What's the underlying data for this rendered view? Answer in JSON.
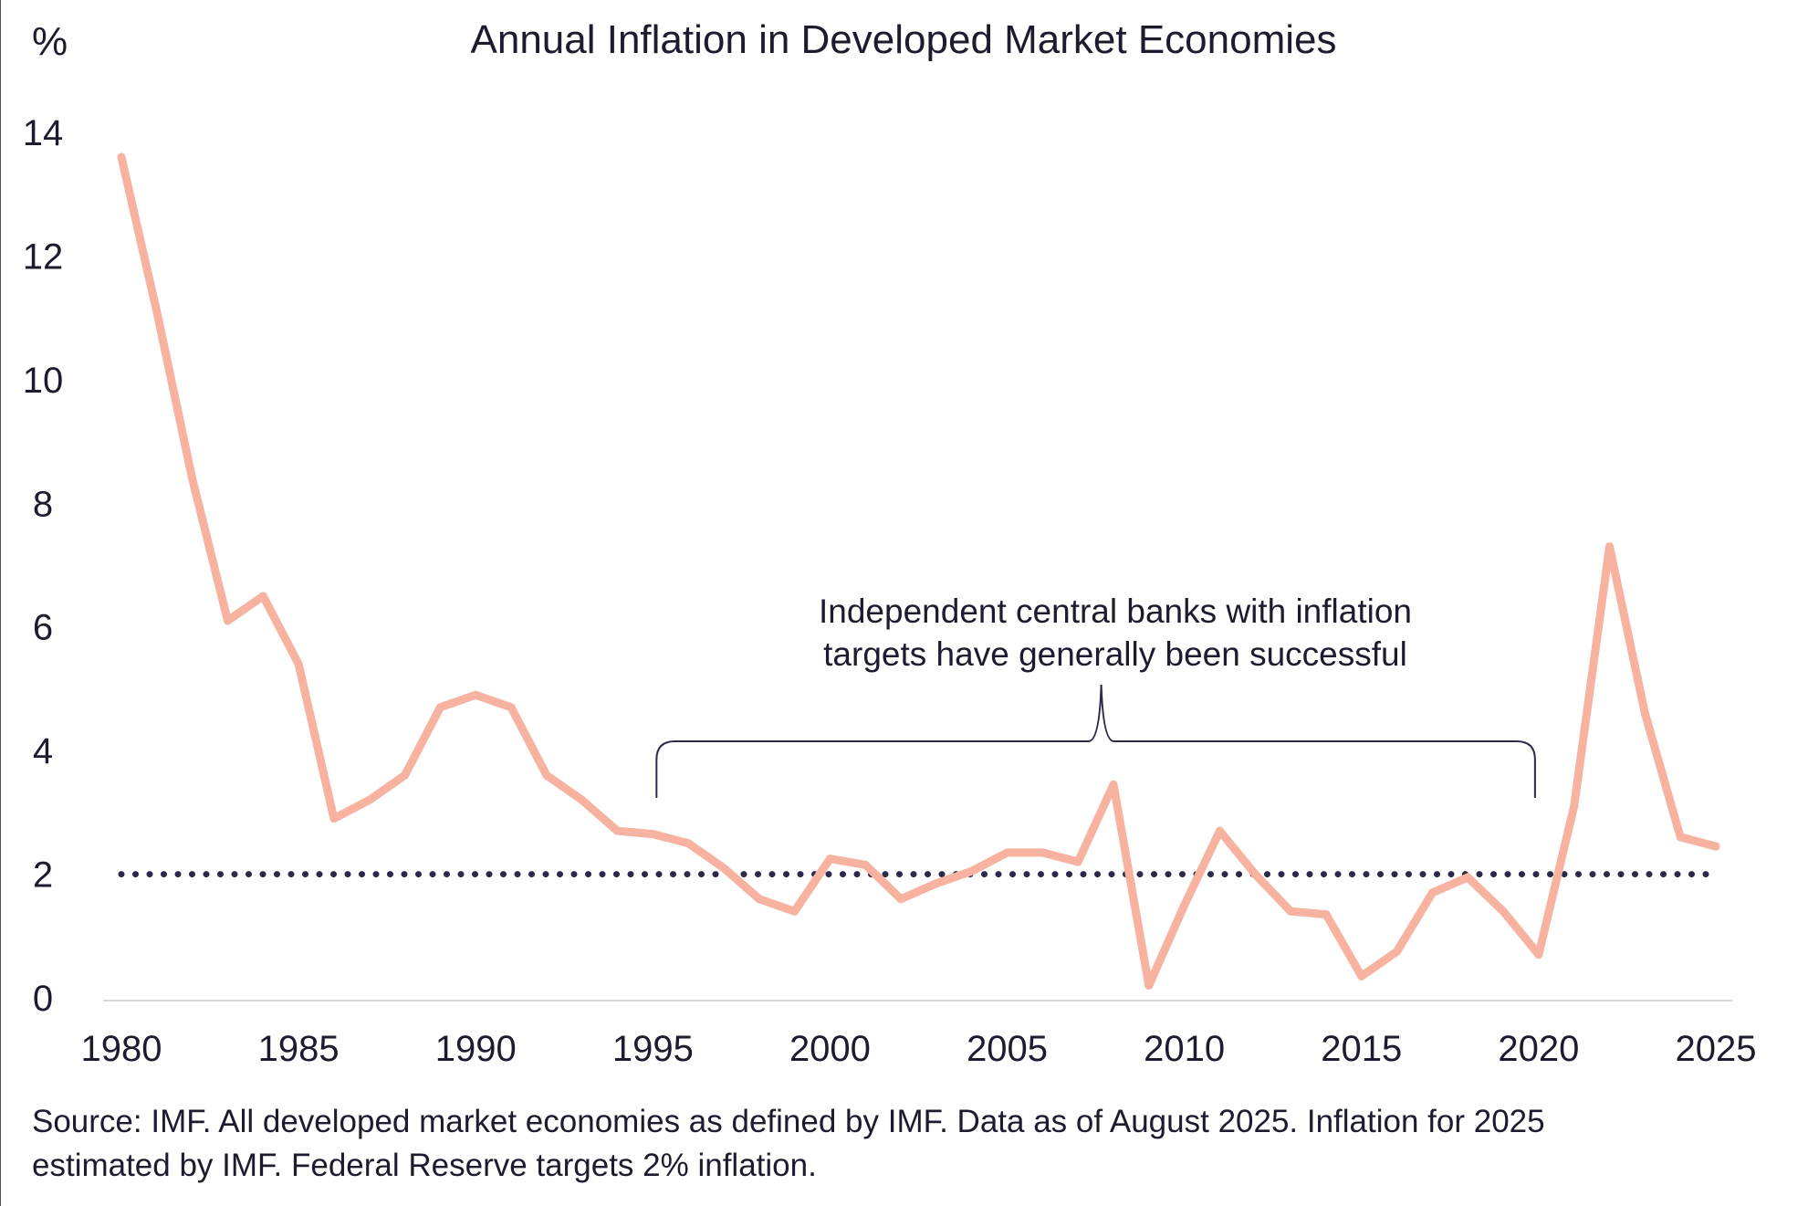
{
  "chart_data": {
    "type": "line",
    "title": "Annual Inflation in Developed Market Economies",
    "ylabel": "%",
    "xlabel": "",
    "xlim": [
      1980,
      2025
    ],
    "ylim": [
      0,
      14
    ],
    "x_ticks": [
      1980,
      1985,
      1990,
      1995,
      2000,
      2005,
      2010,
      2015,
      2020,
      2025
    ],
    "y_ticks": [
      0,
      2,
      4,
      6,
      8,
      10,
      12,
      14
    ],
    "grid": false,
    "x": [
      1980,
      1981,
      1982,
      1983,
      1984,
      1985,
      1986,
      1987,
      1988,
      1989,
      1990,
      1991,
      1992,
      1993,
      1994,
      1995,
      1996,
      1997,
      1998,
      1999,
      2000,
      2001,
      2002,
      2003,
      2004,
      2005,
      2006,
      2007,
      2008,
      2009,
      2010,
      2011,
      2012,
      2013,
      2014,
      2015,
      2016,
      2017,
      2018,
      2019,
      2020,
      2021,
      2022,
      2023,
      2024,
      2025
    ],
    "series": [
      {
        "color": "#f7b2a0",
        "values": [
          13.6,
          11.1,
          8.4,
          6.1,
          6.5,
          5.4,
          2.9,
          3.2,
          3.6,
          4.7,
          4.9,
          4.7,
          3.6,
          3.2,
          2.7,
          2.65,
          2.5,
          2.1,
          1.6,
          1.4,
          2.25,
          2.15,
          1.6,
          1.85,
          2.05,
          2.35,
          2.35,
          2.2,
          3.45,
          0.2,
          1.5,
          2.7,
          2.0,
          1.4,
          1.35,
          0.35,
          0.75,
          1.7,
          1.95,
          1.4,
          0.7,
          3.1,
          7.3,
          4.6,
          2.6,
          2.45
        ]
      }
    ],
    "reference_line": {
      "value": 2,
      "style": "dotted",
      "color": "#2b2a4a"
    },
    "annotation": {
      "lines": [
        "Independent central banks with inflation",
        "targets have generally been successful"
      ],
      "bracket_from": 1995,
      "bracket_to": 2020
    },
    "note_lines": [
      "Source: IMF. All developed market economies as defined by IMF. Data as of August 2025. Inflation for 2025",
      "estimated by IMF. Federal Reserve targets 2% inflation."
    ]
  }
}
